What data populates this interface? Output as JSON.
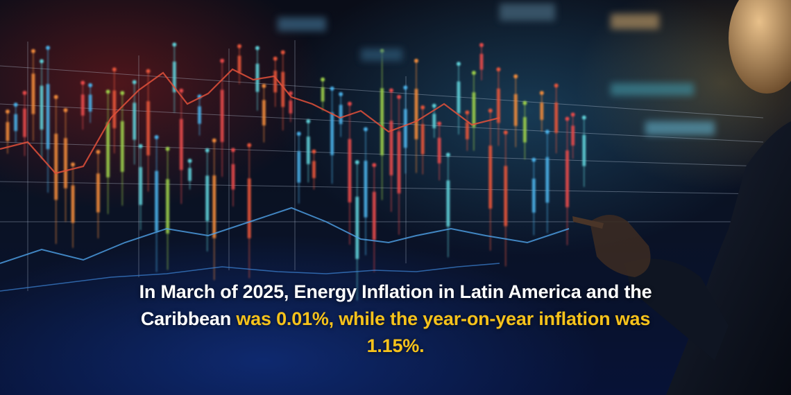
{
  "caption": {
    "part1": "In March of 2025, Energy Inflation in Latin America and the Caribbean ",
    "part2": "was 0.01%, while the year-on-year inflation was 1.15%."
  },
  "colors": {
    "text": "#ffffff",
    "highlight": "#f6c21b"
  },
  "icons": [
    "decorative-financial-chart-graphic",
    "person-pointing-silhouette"
  ]
}
